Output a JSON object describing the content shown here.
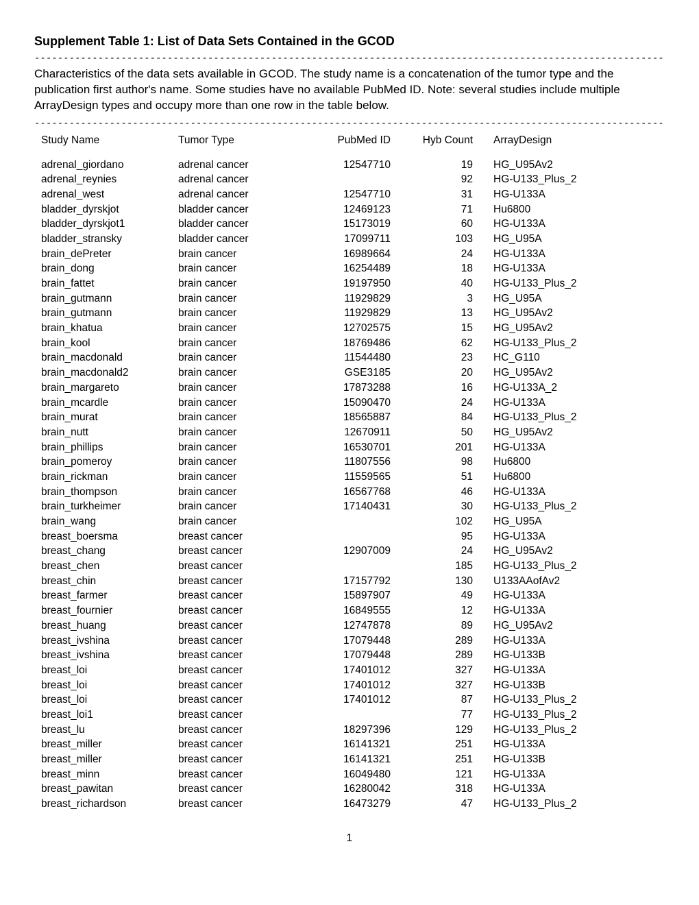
{
  "title": "Supplement Table 1: List of Data Sets Contained in the GCOD",
  "description": "Characteristics of the data sets available in GCOD. The study name is a concatenation of the tumor type and the publication first author's name. Some studies have no available PubMed ID. Note: several studies include multiple ArrayDesign types and occupy more than one row in the table below.",
  "divider": "-----------------------------------------------------------------------------------------------------------------------------------",
  "headers": {
    "study": "Study Name",
    "tumor": "Tumor Type",
    "pubmed": "PubMed ID",
    "hyb": "Hyb Count",
    "array": "ArrayDesign"
  },
  "rows": [
    {
      "study": "adrenal_giordano",
      "tumor": "adrenal cancer",
      "pubmed": "12547710",
      "hyb": "19",
      "array": "HG_U95Av2"
    },
    {
      "study": "adrenal_reynies",
      "tumor": "adrenal cancer",
      "pubmed": "",
      "hyb": "92",
      "array": "HG-U133_Plus_2"
    },
    {
      "study": "adrenal_west",
      "tumor": "adrenal cancer",
      "pubmed": "12547710",
      "hyb": "31",
      "array": "HG-U133A"
    },
    {
      "study": "bladder_dyrskjot",
      "tumor": "bladder cancer",
      "pubmed": "12469123",
      "hyb": "71",
      "array": "Hu6800"
    },
    {
      "study": "bladder_dyrskjot1",
      "tumor": "bladder cancer",
      "pubmed": "15173019",
      "hyb": "60",
      "array": "HG-U133A"
    },
    {
      "study": "bladder_stransky",
      "tumor": "bladder cancer",
      "pubmed": "17099711",
      "hyb": "103",
      "array": "HG_U95A"
    },
    {
      "study": "brain_dePreter",
      "tumor": "brain cancer",
      "pubmed": "16989664",
      "hyb": "24",
      "array": "HG-U133A"
    },
    {
      "study": "brain_dong",
      "tumor": "brain cancer",
      "pubmed": "16254489",
      "hyb": "18",
      "array": "HG-U133A"
    },
    {
      "study": "brain_fattet",
      "tumor": "brain cancer",
      "pubmed": "19197950",
      "hyb": "40",
      "array": "HG-U133_Plus_2"
    },
    {
      "study": "brain_gutmann",
      "tumor": "brain cancer",
      "pubmed": "11929829",
      "hyb": "3",
      "array": "HG_U95A"
    },
    {
      "study": "brain_gutmann",
      "tumor": "brain cancer",
      "pubmed": "11929829",
      "hyb": "13",
      "array": "HG_U95Av2"
    },
    {
      "study": "brain_khatua",
      "tumor": "brain cancer",
      "pubmed": "12702575",
      "hyb": "15",
      "array": "HG_U95Av2"
    },
    {
      "study": "brain_kool",
      "tumor": "brain cancer",
      "pubmed": "18769486",
      "hyb": "62",
      "array": "HG-U133_Plus_2"
    },
    {
      "study": "brain_macdonald",
      "tumor": "brain cancer",
      "pubmed": "11544480",
      "hyb": "23",
      "array": "HC_G110"
    },
    {
      "study": "brain_macdonald2",
      "tumor": "brain cancer",
      "pubmed": "GSE3185",
      "hyb": "20",
      "array": "HG_U95Av2"
    },
    {
      "study": "brain_margareto",
      "tumor": "brain cancer",
      "pubmed": "17873288",
      "hyb": "16",
      "array": "HG-U133A_2"
    },
    {
      "study": "brain_mcardle",
      "tumor": "brain cancer",
      "pubmed": "15090470",
      "hyb": "24",
      "array": "HG-U133A"
    },
    {
      "study": "brain_murat",
      "tumor": "brain cancer",
      "pubmed": "18565887",
      "hyb": "84",
      "array": "HG-U133_Plus_2"
    },
    {
      "study": "brain_nutt",
      "tumor": "brain cancer",
      "pubmed": "12670911",
      "hyb": "50",
      "array": "HG_U95Av2"
    },
    {
      "study": "brain_phillips",
      "tumor": "brain cancer",
      "pubmed": "16530701",
      "hyb": "201",
      "array": "HG-U133A"
    },
    {
      "study": "brain_pomeroy",
      "tumor": "brain cancer",
      "pubmed": "11807556",
      "hyb": "98",
      "array": "Hu6800"
    },
    {
      "study": "brain_rickman",
      "tumor": "brain cancer",
      "pubmed": "11559565",
      "hyb": "51",
      "array": "Hu6800"
    },
    {
      "study": "brain_thompson",
      "tumor": "brain cancer",
      "pubmed": "16567768",
      "hyb": "46",
      "array": "HG-U133A"
    },
    {
      "study": "brain_turkheimer",
      "tumor": "brain cancer",
      "pubmed": "17140431",
      "hyb": "30",
      "array": "HG-U133_Plus_2"
    },
    {
      "study": "brain_wang",
      "tumor": "brain cancer",
      "pubmed": "",
      "hyb": "102",
      "array": "HG_U95A"
    },
    {
      "study": "breast_boersma",
      "tumor": "breast cancer",
      "pubmed": "",
      "hyb": "95",
      "array": "HG-U133A"
    },
    {
      "study": "breast_chang",
      "tumor": "breast cancer",
      "pubmed": "12907009",
      "hyb": "24",
      "array": "HG_U95Av2"
    },
    {
      "study": "breast_chen",
      "tumor": "breast cancer",
      "pubmed": "",
      "hyb": "185",
      "array": "HG-U133_Plus_2"
    },
    {
      "study": "breast_chin",
      "tumor": "breast cancer",
      "pubmed": "17157792",
      "hyb": "130",
      "array": "U133AAofAv2"
    },
    {
      "study": "breast_farmer",
      "tumor": "breast cancer",
      "pubmed": "15897907",
      "hyb": "49",
      "array": "HG-U133A"
    },
    {
      "study": "breast_fournier",
      "tumor": "breast cancer",
      "pubmed": "16849555",
      "hyb": "12",
      "array": "HG-U133A"
    },
    {
      "study": "breast_huang",
      "tumor": "breast cancer",
      "pubmed": "12747878",
      "hyb": "89",
      "array": "HG_U95Av2"
    },
    {
      "study": "breast_ivshina",
      "tumor": "breast cancer",
      "pubmed": "17079448",
      "hyb": "289",
      "array": "HG-U133A"
    },
    {
      "study": "breast_ivshina",
      "tumor": "breast cancer",
      "pubmed": "17079448",
      "hyb": "289",
      "array": "HG-U133B"
    },
    {
      "study": "breast_loi",
      "tumor": "breast cancer",
      "pubmed": "17401012",
      "hyb": "327",
      "array": "HG-U133A"
    },
    {
      "study": "breast_loi",
      "tumor": "breast cancer",
      "pubmed": "17401012",
      "hyb": "327",
      "array": "HG-U133B"
    },
    {
      "study": "breast_loi",
      "tumor": "breast cancer",
      "pubmed": "17401012",
      "hyb": "87",
      "array": "HG-U133_Plus_2"
    },
    {
      "study": "breast_loi1",
      "tumor": "breast cancer",
      "pubmed": "",
      "hyb": "77",
      "array": "HG-U133_Plus_2"
    },
    {
      "study": "breast_lu",
      "tumor": "breast cancer",
      "pubmed": "18297396",
      "hyb": "129",
      "array": "HG-U133_Plus_2"
    },
    {
      "study": "breast_miller",
      "tumor": "breast cancer",
      "pubmed": "16141321",
      "hyb": "251",
      "array": "HG-U133A"
    },
    {
      "study": "breast_miller",
      "tumor": "breast cancer",
      "pubmed": "16141321",
      "hyb": "251",
      "array": "HG-U133B"
    },
    {
      "study": "breast_minn",
      "tumor": "breast cancer",
      "pubmed": "16049480",
      "hyb": "121",
      "array": "HG-U133A"
    },
    {
      "study": "breast_pawitan",
      "tumor": "breast cancer",
      "pubmed": "16280042",
      "hyb": "318",
      "array": "HG-U133A"
    },
    {
      "study": "breast_richardson",
      "tumor": "breast cancer",
      "pubmed": "16473279",
      "hyb": "47",
      "array": "HG-U133_Plus_2"
    }
  ],
  "page_num": "1",
  "style": {
    "font_family": "Arial, Helvetica, sans-serif",
    "title_fontsize": 18,
    "body_fontsize": 15.5,
    "desc_fontsize": 17,
    "text_color": "#000000",
    "background_color": "#ffffff",
    "col_widths": {
      "study": 200,
      "tumor": 180,
      "pubmed": 130,
      "hyb": 100,
      "array": 200
    }
  }
}
